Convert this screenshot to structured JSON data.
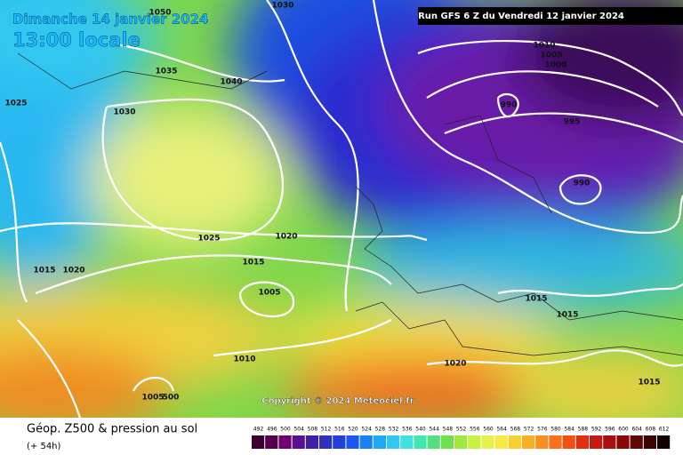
{
  "header": {
    "date": "Dimanche 14 janvier 2024",
    "time": "13:00 locale",
    "run": "Run GFS 6 Z du Vendredi 12 janvier 2024"
  },
  "isobar_labels": [
    "1030",
    "1050",
    "1035",
    "1040",
    "1025",
    "1030",
    "1010",
    "1005",
    "1000",
    "990",
    "995",
    "990",
    "1025",
    "1020",
    "1015",
    "1015",
    "1020",
    "1005",
    "1010",
    "1005",
    "500",
    "1015",
    "1015",
    "1020",
    "1015"
  ],
  "copyright": "Copyright © 2024 Meteociel.fr",
  "footer": {
    "title": "Géop. Z500 & pression au sol",
    "lead": "(+ 54h)"
  },
  "scale": {
    "ticks": [
      492,
      496,
      500,
      504,
      508,
      512,
      516,
      520,
      524,
      528,
      532,
      536,
      540,
      544,
      548,
      552,
      556,
      560,
      564,
      568,
      572,
      576,
      580,
      584,
      588,
      592,
      596,
      600,
      604,
      608,
      612
    ]
  }
}
